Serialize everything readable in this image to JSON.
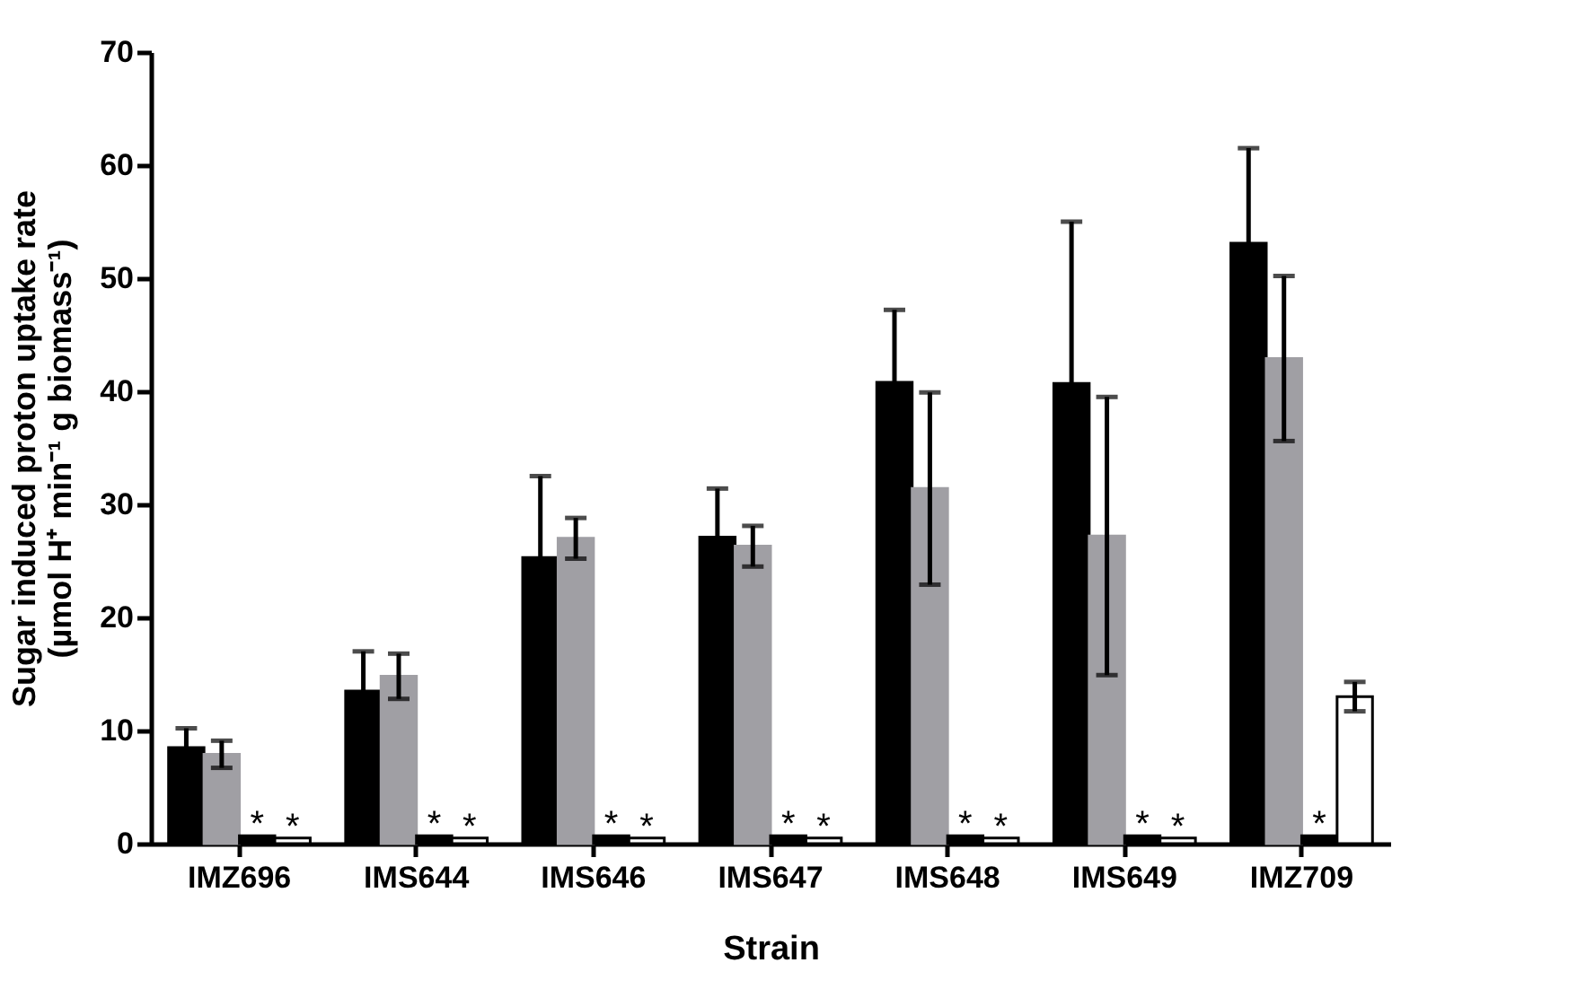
{
  "chart_data": {
    "type": "bar",
    "xlabel": "Strain",
    "ylabel": "Sugar induced proton uptake rate\n(µmol H⁺ min⁻¹ g biomass⁻¹)",
    "categories": [
      "IMZ696",
      "IMS644",
      "IMS646",
      "IMS647",
      "IMS648",
      "IMS649",
      "IMZ709"
    ],
    "series": [
      {
        "color": "#000000",
        "values": [
          8.5,
          13.5,
          25.3,
          27.1,
          40.8,
          40.7,
          53.1
        ],
        "errors": [
          1.7,
          3.5,
          7.2,
          4.3,
          6.4,
          14.3,
          8.4
        ]
      },
      {
        "color": "#a09fa4",
        "values": [
          7.9,
          14.8,
          27,
          26.3,
          31.4,
          27.2,
          42.9
        ],
        "errors": [
          1.2,
          2,
          1.8,
          1.8,
          8.5,
          12.3,
          7.3
        ]
      },
      {
        "color": "#000000",
        "values": [
          0.7,
          0.7,
          0.7,
          0.7,
          0.7,
          0.7,
          0.7
        ]
      },
      {
        "color": "#ffffff",
        "values": [
          0.5,
          0.5,
          0.5,
          0.5,
          0.5,
          0.5,
          13
        ],
        "errors": [
          null,
          null,
          null,
          null,
          null,
          null,
          1.3
        ]
      }
    ],
    "annotations": [
      {
        "text": "*",
        "x": "IMZ696",
        "y": 0.7
      },
      {
        "text": "*",
        "x": "IMZ696",
        "y": 0.5
      },
      {
        "text": "*",
        "x": "IMS644",
        "y": 0.7
      },
      {
        "text": "*",
        "x": "IMS644",
        "y": 0.5
      },
      {
        "text": "*",
        "x": "IMS646",
        "y": 0.7
      },
      {
        "text": "*",
        "x": "IMS646",
        "y": 0.5
      },
      {
        "text": "*",
        "x": "IMS647",
        "y": 0.7
      },
      {
        "text": "*",
        "x": "IMS647",
        "y": 0.5
      },
      {
        "text": "*",
        "x": "IMS648",
        "y": 0.7
      },
      {
        "text": "*",
        "x": "IMS648",
        "y": 0.5
      },
      {
        "text": "*",
        "x": "IMS649",
        "y": 0.7
      },
      {
        "text": "*",
        "x": "IMS649",
        "y": 0.5
      },
      {
        "text": "*",
        "x": "IMZ709",
        "y": 0.7
      }
    ],
    "ylim": [
      0,
      70
    ],
    "yticks": [
      0,
      10,
      20,
      30,
      40,
      50,
      60,
      70
    ]
  }
}
